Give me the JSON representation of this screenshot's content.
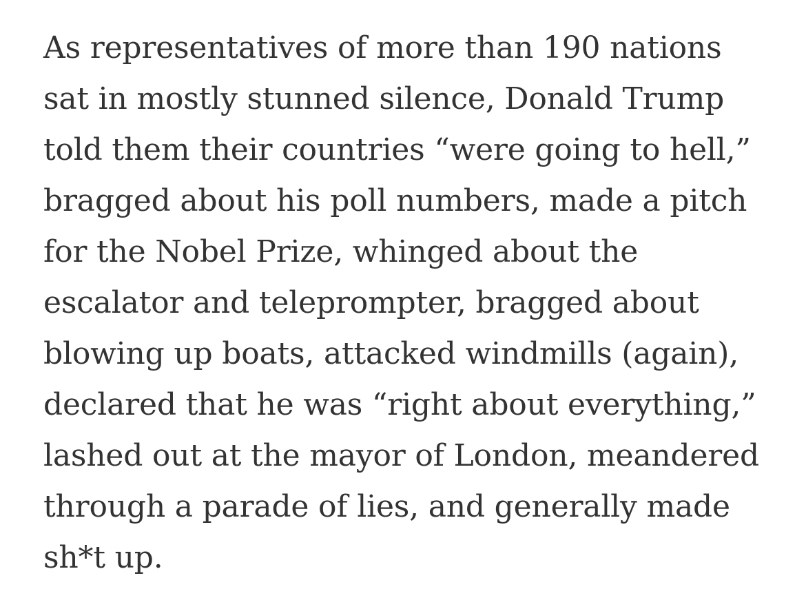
{
  "article": {
    "text_color": "#333333",
    "background_color": "#ffffff",
    "paragraph": {
      "full_text": "As representatives of more than 190 nations sat in mostly stunned silence, Donald Trump told them their countries “were going to hell,” bragged about his poll numbers, made a pitch for the Nobel Prize, whinged about the escalator and teleprompter, bragged about blowing up boats, attacked windmills (again), declared that he was “right about everything,” lashed out at the mayor of London, meandered through a parade of lies, and generally made sh*t up.",
      "lines": [
        "As representatives of more than 190 nations",
        "sat in mostly stunned silence, Donald Trump",
        "told them their countries “were going to hell,”",
        "bragged about his poll numbers, made a pitch",
        "for the Nobel Prize, whinged about the",
        "escalator and teleprompter, bragged about",
        "blowing up boats, attacked windmills (again),",
        "declared that he was “right about everything,”",
        "lashed out at the mayor of London, meandered",
        "through a parade of lies, and generally made",
        "sh*t up."
      ]
    }
  }
}
